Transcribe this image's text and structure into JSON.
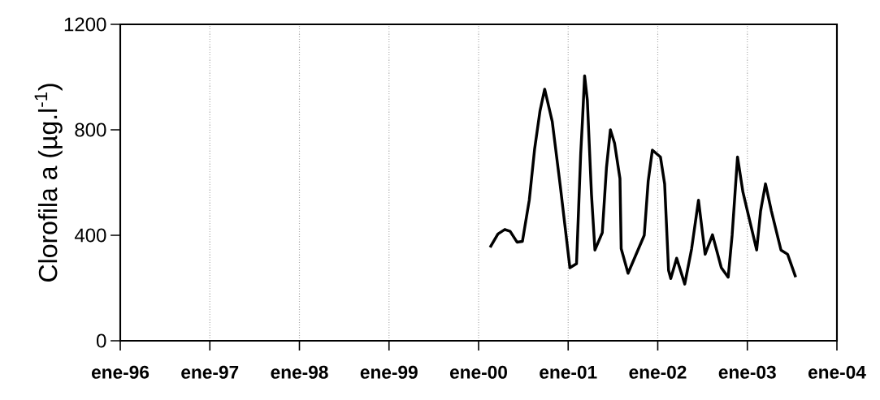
{
  "chart_data": {
    "type": "line",
    "ylabel": "Clorofila a (µg.l$^{-1}$)",
    "xlim": [
      "1996-01-01",
      "2004-01-01"
    ],
    "xticks": [
      {
        "value": "1996-01-01",
        "label": "ene-96"
      },
      {
        "value": "1997-01-01",
        "label": "ene-97"
      },
      {
        "value": "1998-01-01",
        "label": "ene-98"
      },
      {
        "value": "1999-01-01",
        "label": "ene-99"
      },
      {
        "value": "2000-01-01",
        "label": "ene-00"
      },
      {
        "value": "2001-01-01",
        "label": "ene-01"
      },
      {
        "value": "2002-01-01",
        "label": "ene-02"
      },
      {
        "value": "2003-01-01",
        "label": "ene-03"
      },
      {
        "value": "2004-01-01",
        "label": "ene-04"
      }
    ],
    "ylim": [
      0,
      1200
    ],
    "yticks": [
      0,
      400,
      800,
      1200
    ],
    "grid": "x",
    "marker": "none",
    "line_style": "solid",
    "series": [
      {
        "color": "#000000",
        "x": [
          "2000-02-17",
          "2000-03-20",
          "2000-04-17",
          "2000-05-09",
          "2000-06-06",
          "2000-06-28",
          "2000-07-26",
          "2000-08-17",
          "2000-09-08",
          "2000-09-27",
          "2000-10-28",
          "2000-11-30",
          "2001-01-08",
          "2001-02-04",
          "2001-02-21",
          "2001-02-28",
          "2001-03-09",
          "2001-03-20",
          "2001-04-06",
          "2001-04-20",
          "2001-05-20",
          "2001-06-06",
          "2001-06-22",
          "2001-07-09",
          "2001-07-31",
          "2001-08-05",
          "2001-09-02",
          "2001-10-05",
          "2001-11-07",
          "2001-11-23",
          "2001-12-10",
          "2002-01-12",
          "2002-01-29",
          "2002-02-14",
          "2002-02-23",
          "2002-03-19",
          "2002-04-21",
          "2002-05-19",
          "2002-06-16",
          "2002-07-13",
          "2002-08-12",
          "2002-09-17",
          "2002-10-15",
          "2002-10-31",
          "2002-11-22",
          "2002-12-14",
          "2003-02-08",
          "2003-02-24",
          "2003-03-16",
          "2003-04-09",
          "2003-05-18",
          "2003-06-14",
          "2003-07-17"
        ],
        "values": [
          354,
          405,
          422,
          415,
          374,
          377,
          533,
          728,
          872,
          954,
          831,
          585,
          277,
          292,
          708,
          831,
          1005,
          913,
          554,
          344,
          410,
          656,
          800,
          749,
          615,
          349,
          256,
          328,
          400,
          605,
          723,
          697,
          595,
          267,
          236,
          313,
          215,
          349,
          533,
          328,
          402,
          277,
          241,
          400,
          697,
          564,
          344,
          492,
          595,
          492,
          344,
          328,
          241
        ]
      }
    ]
  }
}
